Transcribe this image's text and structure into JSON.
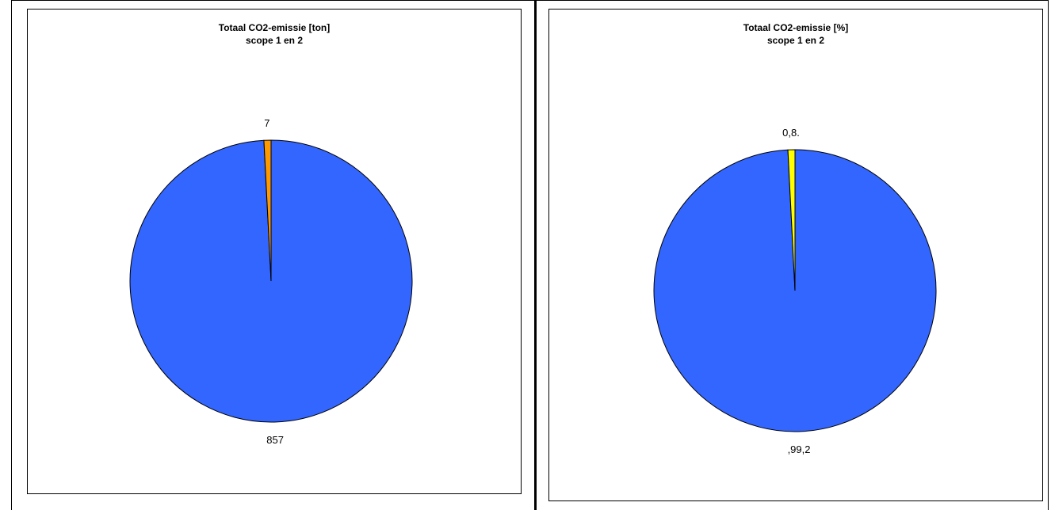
{
  "chart_data": [
    {
      "type": "pie",
      "title": "Totaal CO2-emissie [ton]",
      "subtitle": "scope 1 en 2",
      "slices": [
        {
          "label": "857",
          "value": 857,
          "color": "#3366FF"
        },
        {
          "label": "7",
          "value": 7,
          "color": "#FF9900"
        }
      ],
      "legend": "none"
    },
    {
      "type": "pie",
      "title": "Totaal CO2-emissie [%]",
      "subtitle": "scope 1 en 2",
      "slices": [
        {
          "label": ",99,2",
          "value": 99.2,
          "color": "#3366FF"
        },
        {
          "label": "0,8.",
          "value": 0.8,
          "color": "#FFFF00"
        }
      ],
      "legend": "none"
    }
  ]
}
